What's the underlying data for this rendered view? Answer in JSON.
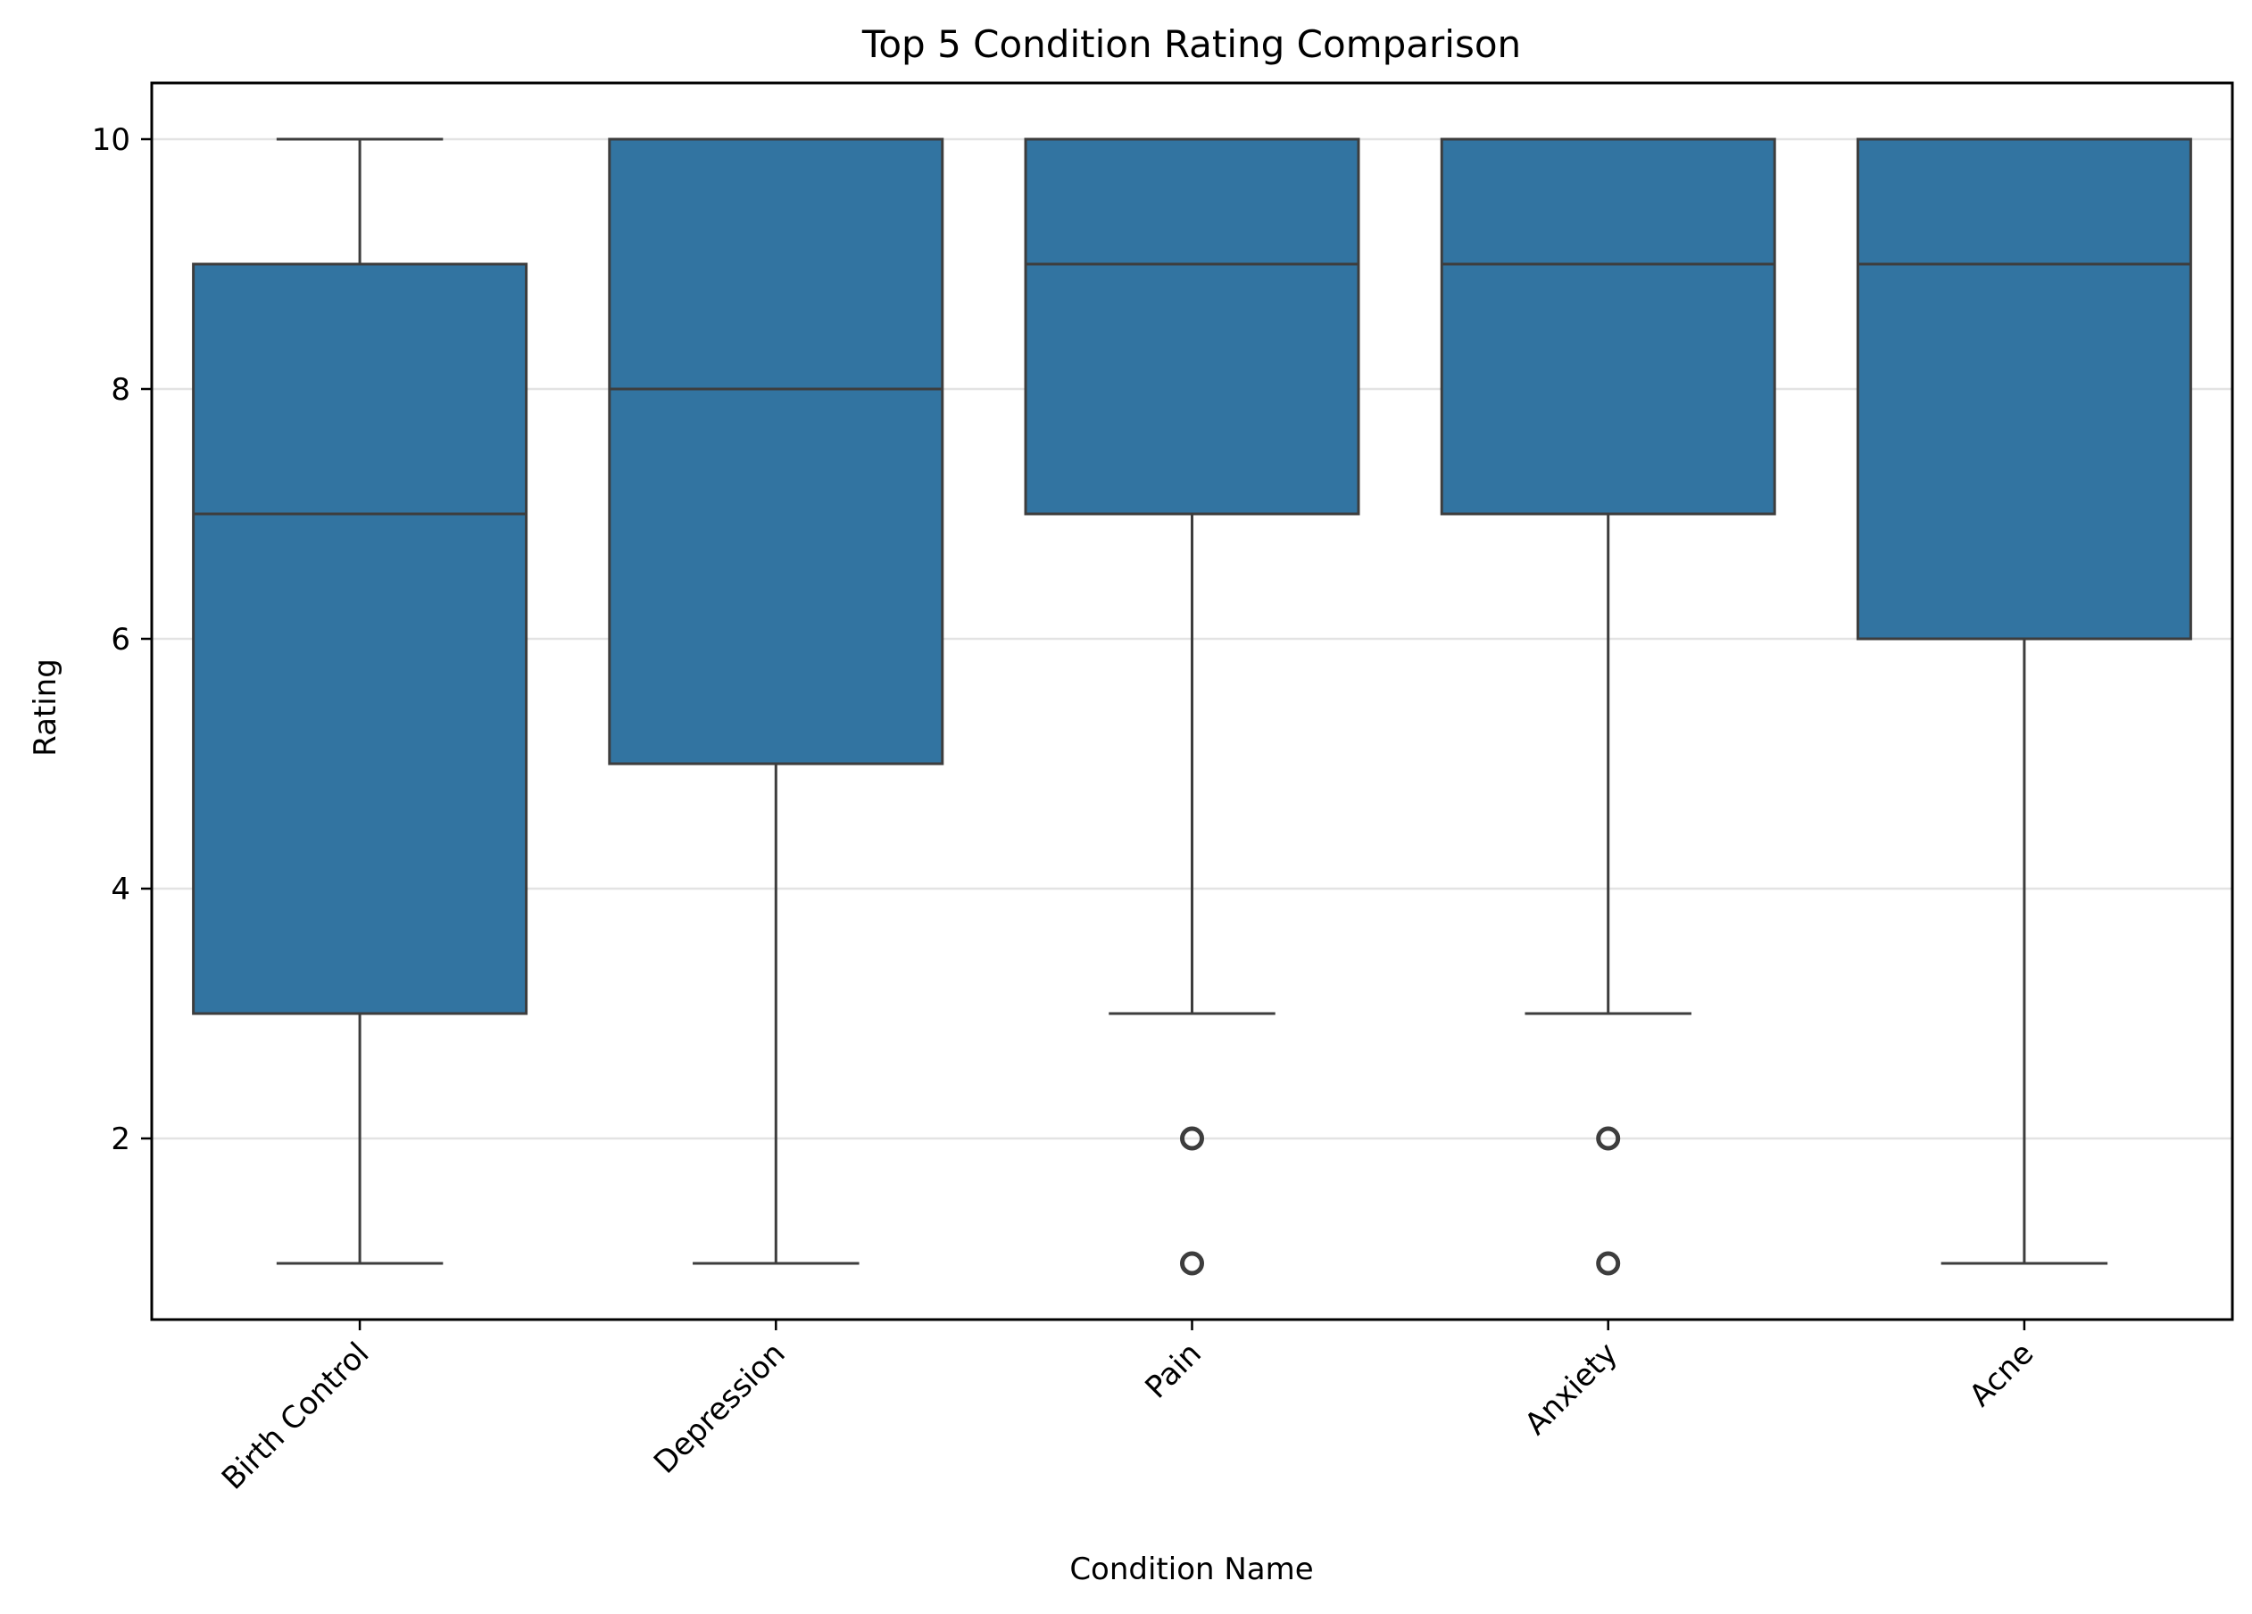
{
  "chart_data": {
    "type": "box",
    "title": "Top 5 Condition Rating Comparison",
    "xlabel": "Condition Name",
    "ylabel": "Rating",
    "ylim": [
      0.55,
      10.45
    ],
    "yticks": [
      2,
      4,
      6,
      8,
      10
    ],
    "grid": "horizontal",
    "box_color": "#3274a1",
    "line_color": "#3d3d3d",
    "categories": [
      "Birth Control",
      "Depression",
      "Pain",
      "Anxiety",
      "Acne"
    ],
    "boxes": [
      {
        "category": "Birth Control",
        "whisker_low": 1,
        "q1": 3,
        "median": 7,
        "q3": 9,
        "whisker_high": 10,
        "outliers": []
      },
      {
        "category": "Depression",
        "whisker_low": 1,
        "q1": 5,
        "median": 8,
        "q3": 10,
        "whisker_high": 10,
        "outliers": []
      },
      {
        "category": "Pain",
        "whisker_low": 3,
        "q1": 7,
        "median": 9,
        "q3": 10,
        "whisker_high": 10,
        "outliers": [
          1,
          2
        ]
      },
      {
        "category": "Anxiety",
        "whisker_low": 3,
        "q1": 7,
        "median": 9,
        "q3": 10,
        "whisker_high": 10,
        "outliers": [
          1,
          2
        ]
      },
      {
        "category": "Acne",
        "whisker_low": 1,
        "q1": 6,
        "median": 9,
        "q3": 10,
        "whisker_high": 10,
        "outliers": []
      }
    ]
  }
}
